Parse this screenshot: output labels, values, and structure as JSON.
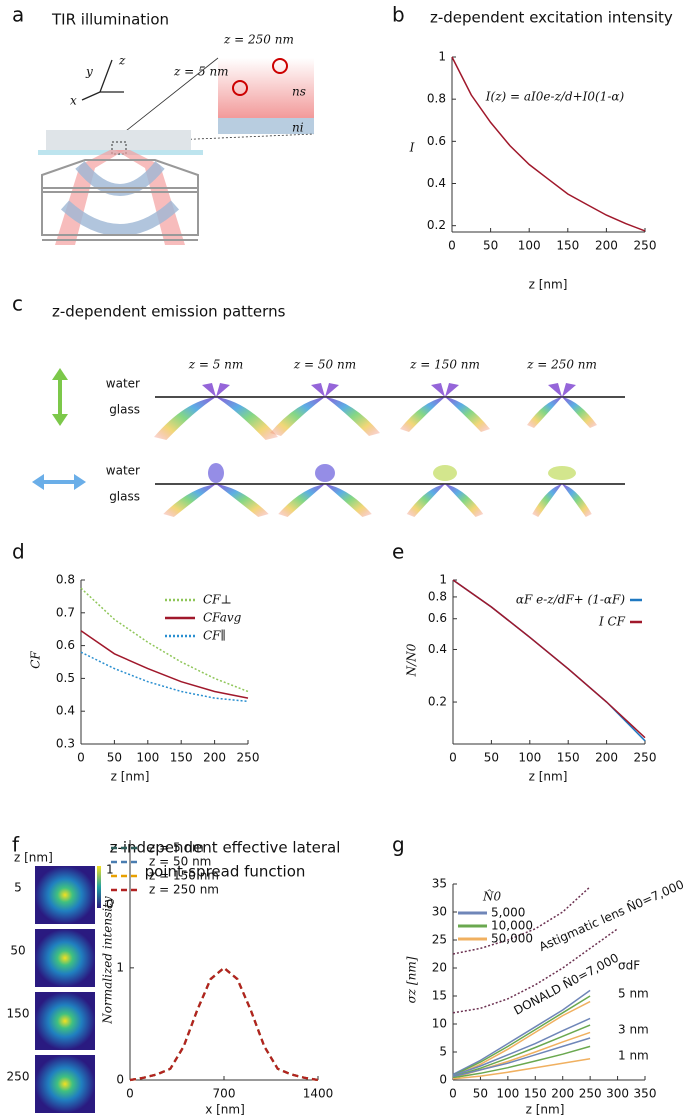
{
  "panel_a": {
    "label": "a",
    "title": "TIR illumination",
    "axes": [
      "y",
      "z",
      "x"
    ],
    "z_top": "z = 250 nm",
    "z_bottom": "z = 5 nm",
    "n_s": "ns",
    "n_i": "ni"
  },
  "panel_c": {
    "label": "c",
    "title": "z-dependent emission patterns",
    "columns": [
      "z = 5 nm",
      "z = 50 nm",
      "z = 150 nm",
      "z = 250 nm"
    ],
    "rows": [
      {
        "upper": "water",
        "lower": "glass"
      },
      {
        "upper": "water",
        "lower": "glass"
      }
    ]
  },
  "panel_f_maps": {
    "label": "f",
    "axis_label": "z [nm]",
    "rows": [
      "5",
      "50",
      "150",
      "250"
    ],
    "colorbar": [
      "1",
      "0"
    ]
  },
  "chart_data": [
    {
      "type": "line",
      "panel": "b",
      "title": "z-dependent excitation intensity",
      "annotation": "I(z) = aI0e-z/d+I0(1-α)",
      "xlabel": "z [nm]",
      "ylabel": "I",
      "x": [
        0,
        25,
        50,
        75,
        100,
        125,
        150,
        175,
        200,
        225,
        250
      ],
      "series": [
        {
          "color": "#a0182b",
          "values": [
            1,
            0.82,
            0.69,
            0.58,
            0.49,
            0.42,
            0.35,
            0.3,
            0.25,
            0.21,
            0.175
          ]
        }
      ],
      "xlim": [
        0,
        250
      ],
      "ylim": [
        0.17,
        1
      ],
      "xticks": [
        0,
        50,
        100,
        150,
        200,
        250
      ],
      "yticks": [
        0.2,
        0.4,
        0.6,
        0.8,
        1
      ]
    },
    {
      "type": "line",
      "panel": "d",
      "xlabel": "z [nm]",
      "ylabel": "CF",
      "legend": "upper right",
      "x": [
        0,
        50,
        100,
        150,
        200,
        250
      ],
      "series": [
        {
          "name": "CF⊥",
          "color": "#8fc659",
          "dash": "dotted",
          "values": [
            0.775,
            0.68,
            0.61,
            0.55,
            0.5,
            0.46
          ]
        },
        {
          "name": "CFavg",
          "color": "#a0182b",
          "values": [
            0.645,
            0.575,
            0.53,
            0.49,
            0.46,
            0.44
          ]
        },
        {
          "name": "CF∥",
          "color": "#2a8fd0",
          "dash": "dotted",
          "values": [
            0.58,
            0.53,
            0.49,
            0.46,
            0.44,
            0.43
          ]
        }
      ],
      "xlim": [
        0,
        250
      ],
      "ylim": [
        0.3,
        0.8
      ],
      "xticks": [
        0,
        50,
        100,
        150,
        200,
        250
      ],
      "yticks": [
        0.3,
        0.4,
        0.5,
        0.6,
        0.7,
        0.8
      ]
    },
    {
      "type": "line",
      "panel": "e",
      "xlabel": "z [nm]",
      "ylabel": "N/N0",
      "yscale": "log",
      "legend": "upper right",
      "x": [
        0,
        50,
        100,
        150,
        200,
        250
      ],
      "series": [
        {
          "name": "αF e-z/dF+ (1-αF)",
          "color": "#1f78c1",
          "values": [
            1,
            0.7,
            0.47,
            0.31,
            0.2,
            0.12
          ]
        },
        {
          "name": "I CF",
          "color": "#a0182b",
          "values": [
            1,
            0.7,
            0.47,
            0.31,
            0.2,
            0.125
          ]
        }
      ],
      "xlim": [
        0,
        250
      ],
      "ylim": [
        0.115,
        1
      ],
      "xticks": [
        0,
        50,
        100,
        150,
        200,
        250
      ],
      "yticks": [
        0.2,
        0.4,
        0.6,
        0.8,
        1
      ]
    },
    {
      "type": "line",
      "panel": "",
      "title": "z-independent effective lateral",
      "subtitle": "point-spread function",
      "xlabel": "x [nm]",
      "ylabel": "Normalized intensity",
      "legend": "upper left",
      "x": [
        0,
        100,
        200,
        300,
        400,
        500,
        600,
        700,
        800,
        900,
        1000,
        1100,
        1200,
        1300,
        1400
      ],
      "series": [
        {
          "name": "z = 5 nm",
          "color": "#2e5e5a",
          "dash": "dashed",
          "values": [
            0,
            0.02,
            0.05,
            0.1,
            0.3,
            0.62,
            0.9,
            1,
            0.9,
            0.62,
            0.3,
            0.1,
            0.05,
            0.02,
            0
          ]
        },
        {
          "name": "z = 50 nm",
          "color": "#4a7db0",
          "dash": "dashed",
          "values": [
            0,
            0.02,
            0.05,
            0.1,
            0.3,
            0.62,
            0.9,
            1,
            0.9,
            0.62,
            0.3,
            0.1,
            0.05,
            0.02,
            0
          ]
        },
        {
          "name": "z = 150 nm",
          "color": "#e8a000",
          "dash": "dashed",
          "values": [
            0,
            0.02,
            0.05,
            0.1,
            0.3,
            0.62,
            0.9,
            1,
            0.9,
            0.62,
            0.3,
            0.1,
            0.05,
            0.02,
            0
          ]
        },
        {
          "name": "z = 250 nm",
          "color": "#b22222",
          "dash": "dashed",
          "values": [
            0,
            0.02,
            0.05,
            0.1,
            0.3,
            0.62,
            0.9,
            1,
            0.9,
            0.62,
            0.3,
            0.1,
            0.05,
            0.02,
            0
          ]
        }
      ],
      "xlim": [
        0,
        1400
      ],
      "ylim": [
        0,
        2.14
      ],
      "xticks": [
        0,
        700,
        1400
      ],
      "yticks": [
        0,
        1
      ]
    },
    {
      "type": "line",
      "panel": "g",
      "xlabel": "z [nm]",
      "ylabel": "σz [nm]",
      "legend": {
        "title": "N̂0",
        "entries": [
          {
            "label": "5,000",
            "color": "#6f86b8"
          },
          {
            "label": "10,000",
            "color": "#6aa84f"
          },
          {
            "label": "50,000",
            "color": "#f0b060"
          }
        ]
      },
      "annotations": [
        "Astigmatic lens N̂0=7,000",
        "DONALD N̂0=7,000",
        "σdF",
        "5 nm",
        "3 nm",
        "1 nm"
      ],
      "x": [
        0,
        50,
        100,
        150,
        200,
        250,
        300
      ],
      "series": [
        {
          "color": "#6b3050",
          "dash": "dotted",
          "values": [
            22.5,
            23.5,
            25,
            27,
            30,
            34.5,
            null
          ]
        },
        {
          "color": "#6b3050",
          "dash": "dotted",
          "values": [
            12,
            12.8,
            14.5,
            17,
            20,
            23.5,
            27
          ]
        },
        {
          "color": "#6f86b8",
          "values": [
            1,
            3.5,
            6.5,
            9.5,
            12.5,
            16,
            null
          ]
        },
        {
          "color": "#6aa84f",
          "values": [
            0.8,
            3.2,
            6,
            9,
            12,
            15,
            null
          ]
        },
        {
          "color": "#f0b060",
          "values": [
            0.6,
            2.8,
            5.5,
            8.5,
            11.5,
            14,
            null
          ]
        },
        {
          "color": "#6f86b8",
          "values": [
            0.8,
            2.5,
            4.5,
            6.5,
            8.8,
            11,
            null
          ]
        },
        {
          "color": "#6aa84f",
          "values": [
            0.6,
            2.1,
            3.9,
            5.8,
            7.8,
            9.8,
            null
          ]
        },
        {
          "color": "#f0b060",
          "values": [
            0.4,
            1.8,
            3.3,
            5,
            6.8,
            8.5,
            null
          ]
        },
        {
          "color": "#6f86b8",
          "values": [
            0.6,
            1.8,
            3,
            4.5,
            6,
            7.5,
            null
          ]
        },
        {
          "color": "#6aa84f",
          "values": [
            0.4,
            1.2,
            2.2,
            3.4,
            4.6,
            6,
            null
          ]
        },
        {
          "color": "#f0b060",
          "values": [
            0.2,
            0.7,
            1.4,
            2.2,
            3,
            3.8,
            null
          ]
        }
      ],
      "xlim": [
        0,
        350
      ],
      "ylim": [
        0,
        35
      ],
      "xticks": [
        0,
        50,
        100,
        150,
        200,
        250,
        300,
        350
      ],
      "yticks": [
        0,
        5,
        10,
        15,
        20,
        25,
        30,
        35
      ]
    }
  ]
}
